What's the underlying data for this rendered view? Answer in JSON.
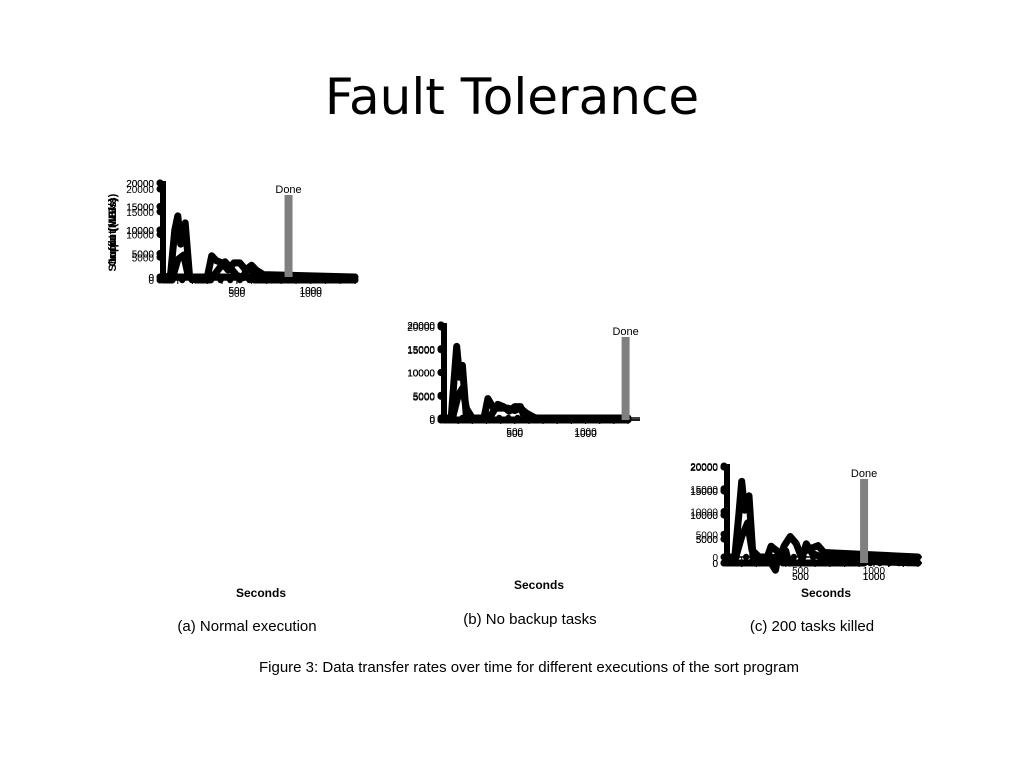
{
  "slide": {
    "title": "Fault Tolerance"
  },
  "figure_caption": "Figure 3: Data transfer rates over time for different executions of the sort program",
  "colors": {
    "line": "#000000",
    "done_marker": "#808080"
  },
  "chart_data": {
    "type": "line",
    "y_ticks": [
      0,
      5000,
      10000,
      15000,
      20000
    ],
    "x_ticks": [
      500,
      1000
    ],
    "ylim": [
      0,
      20000
    ],
    "xlim": [
      0,
      1300
    ],
    "row_labels": [
      "Input (MB/s)",
      "Shuffle (MB/s)",
      "Output (MB/s)"
    ],
    "xlabel": "Seconds",
    "done_label": "Done",
    "columns": [
      {
        "caption": "(a) Normal execution",
        "done_x": 850,
        "input": [
          [
            0,
            0
          ],
          [
            50,
            200
          ],
          [
            80,
            10000
          ],
          [
            100,
            13000
          ],
          [
            120,
            7000
          ],
          [
            150,
            11500
          ],
          [
            180,
            0
          ],
          [
            300,
            0
          ],
          [
            500,
            0
          ],
          [
            800,
            0
          ]
        ],
        "shuffle": [
          [
            0,
            0
          ],
          [
            60,
            0
          ],
          [
            100,
            4500
          ],
          [
            140,
            5500
          ],
          [
            170,
            1000
          ],
          [
            220,
            0
          ],
          [
            320,
            0
          ],
          [
            380,
            2500
          ],
          [
            420,
            4000
          ],
          [
            460,
            2500
          ],
          [
            500,
            1000
          ],
          [
            540,
            500
          ],
          [
            570,
            2500
          ],
          [
            600,
            2500
          ],
          [
            620,
            0
          ],
          [
            1300,
            0
          ]
        ],
        "output": [
          [
            0,
            0
          ],
          [
            300,
            0
          ],
          [
            330,
            4500
          ],
          [
            360,
            3500
          ],
          [
            400,
            3000
          ],
          [
            440,
            1500
          ],
          [
            480,
            3000
          ],
          [
            520,
            3000
          ],
          [
            560,
            1500
          ],
          [
            600,
            2500
          ],
          [
            630,
            1500
          ],
          [
            680,
            500
          ],
          [
            1300,
            0
          ]
        ]
      },
      {
        "caption": "(b) No backup tasks",
        "done_x": 1283,
        "input": [
          [
            0,
            0
          ],
          [
            50,
            200
          ],
          [
            70,
            8000
          ],
          [
            90,
            15500
          ],
          [
            110,
            9000
          ],
          [
            130,
            11500
          ],
          [
            160,
            0
          ],
          [
            300,
            0
          ],
          [
            600,
            0
          ],
          [
            1283,
            0
          ]
        ],
        "shuffle": [
          [
            0,
            0
          ],
          [
            60,
            0
          ],
          [
            100,
            5000
          ],
          [
            130,
            6500
          ],
          [
            160,
            2000
          ],
          [
            200,
            0
          ],
          [
            320,
            0
          ],
          [
            380,
            3000
          ],
          [
            420,
            2500
          ],
          [
            460,
            1500
          ],
          [
            500,
            2500
          ],
          [
            540,
            2500
          ],
          [
            570,
            0
          ],
          [
            1300,
            0
          ]
        ],
        "output": [
          [
            0,
            0
          ],
          [
            280,
            0
          ],
          [
            310,
            4500
          ],
          [
            350,
            2500
          ],
          [
            400,
            2500
          ],
          [
            450,
            2500
          ],
          [
            500,
            2000
          ],
          [
            540,
            2500
          ],
          [
            580,
            1500
          ],
          [
            640,
            500
          ],
          [
            700,
            200
          ],
          [
            1300,
            0
          ]
        ]
      },
      {
        "caption": "(c) 200 tasks killed",
        "done_x": 933,
        "input": [
          [
            0,
            0
          ],
          [
            50,
            200
          ],
          [
            80,
            10000
          ],
          [
            100,
            17000
          ],
          [
            120,
            11000
          ],
          [
            150,
            14000
          ],
          [
            180,
            0
          ],
          [
            300,
            0
          ],
          [
            330,
            -1500
          ],
          [
            350,
            2000
          ],
          [
            380,
            0
          ],
          [
            400,
            2500
          ],
          [
            420,
            0
          ],
          [
            600,
            0
          ],
          [
            933,
            0
          ]
        ],
        "shuffle": [
          [
            0,
            0
          ],
          [
            60,
            0
          ],
          [
            100,
            4500
          ],
          [
            140,
            7500
          ],
          [
            170,
            1500
          ],
          [
            220,
            0
          ],
          [
            300,
            0
          ],
          [
            350,
            -1000
          ],
          [
            390,
            2500
          ],
          [
            430,
            4500
          ],
          [
            470,
            3000
          ],
          [
            500,
            500
          ],
          [
            540,
            1500
          ],
          [
            580,
            2000
          ],
          [
            620,
            2500
          ],
          [
            660,
            1000
          ],
          [
            1300,
            0
          ]
        ],
        "output": [
          [
            0,
            0
          ],
          [
            260,
            0
          ],
          [
            300,
            3500
          ],
          [
            340,
            2500
          ],
          [
            380,
            500
          ],
          [
            440,
            0
          ],
          [
            500,
            0
          ],
          [
            540,
            4000
          ],
          [
            580,
            2000
          ],
          [
            620,
            1500
          ],
          [
            660,
            1000
          ],
          [
            720,
            1500
          ],
          [
            780,
            500
          ],
          [
            1300,
            0
          ]
        ]
      }
    ]
  }
}
